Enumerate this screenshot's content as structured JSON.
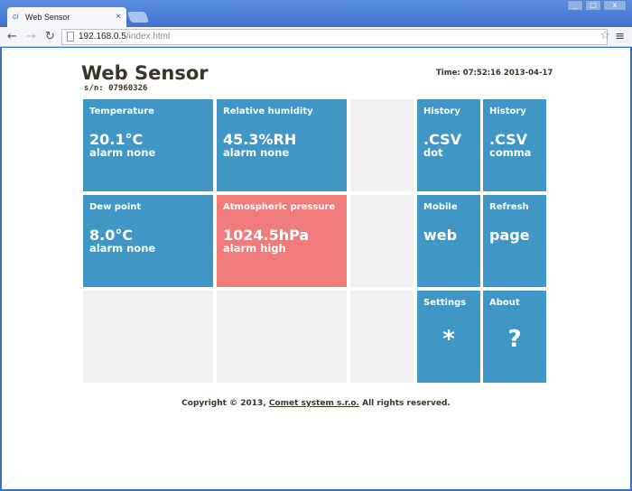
{
  "browser": {
    "tab_title": "Web Sensor",
    "url_host": "192.168.0.5",
    "url_path": "/index.html"
  },
  "header": {
    "title": "Web Sensor",
    "serial": "s/n: 07960326",
    "time": "Time: 07:52:16 2013-04-17"
  },
  "tiles": {
    "temperature": {
      "label": "Temperature",
      "value": "20.1°C",
      "alarm": "alarm none"
    },
    "humidity": {
      "label": "Relative humidity",
      "value": "45.3%RH",
      "alarm": "alarm none"
    },
    "dew": {
      "label": "Dew point",
      "value": "8.0°C",
      "alarm": "alarm none"
    },
    "pressure": {
      "label": "Atmospheric pressure",
      "value": "1024.5hPa",
      "alarm": "alarm high"
    },
    "history_dot": {
      "label": "History",
      "value": ".CSV",
      "sub": "dot"
    },
    "history_comma": {
      "label": "History",
      "value": ".CSV",
      "sub": "comma"
    },
    "mobile": {
      "label": "Mobile",
      "value": "web"
    },
    "refresh": {
      "label": "Refresh",
      "value": "page"
    },
    "settings": {
      "label": "Settings",
      "symbol": "*"
    },
    "about": {
      "label": "About",
      "symbol": "?"
    }
  },
  "colors": {
    "tile_normal": "#4097c6",
    "tile_alarm": "#ef7c7b",
    "tile_empty": "#f1f1f1"
  },
  "footer": {
    "prefix": "Copyright © 2013, ",
    "link": "Comet system s.r.o.",
    "suffix": " All rights reserved."
  }
}
